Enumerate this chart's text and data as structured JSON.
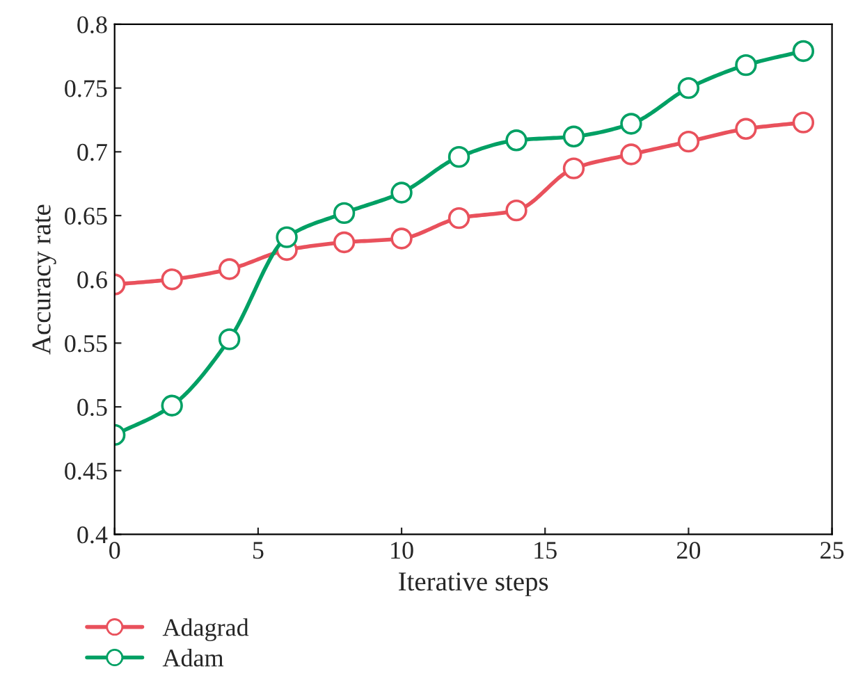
{
  "chart_data": {
    "type": "line",
    "xlabel": "Iterative steps",
    "ylabel": "Accuracy rate",
    "x": [
      0,
      2,
      4,
      6,
      8,
      10,
      12,
      14,
      16,
      18,
      20,
      22,
      24
    ],
    "series": [
      {
        "name": "Adagrad",
        "color": "#e9515c",
        "values": [
          0.596,
          0.6,
          0.608,
          0.623,
          0.629,
          0.632,
          0.648,
          0.654,
          0.687,
          0.698,
          0.708,
          0.718,
          0.723
        ]
      },
      {
        "name": "Adam",
        "color": "#00a064",
        "values": [
          0.478,
          0.501,
          0.553,
          0.633,
          0.652,
          0.668,
          0.696,
          0.709,
          0.712,
          0.722,
          0.75,
          0.768,
          0.779
        ]
      }
    ],
    "xlim": [
      0,
      25
    ],
    "xticks": [
      0,
      5,
      10,
      15,
      20,
      25
    ],
    "ylim": [
      0.4,
      0.8
    ],
    "yticks": [
      0.4,
      0.45,
      0.5,
      0.55,
      0.6,
      0.65,
      0.7,
      0.75,
      0.8
    ],
    "marker": "circle",
    "line_style": "solid",
    "grid": false,
    "legend": "bottom left"
  }
}
